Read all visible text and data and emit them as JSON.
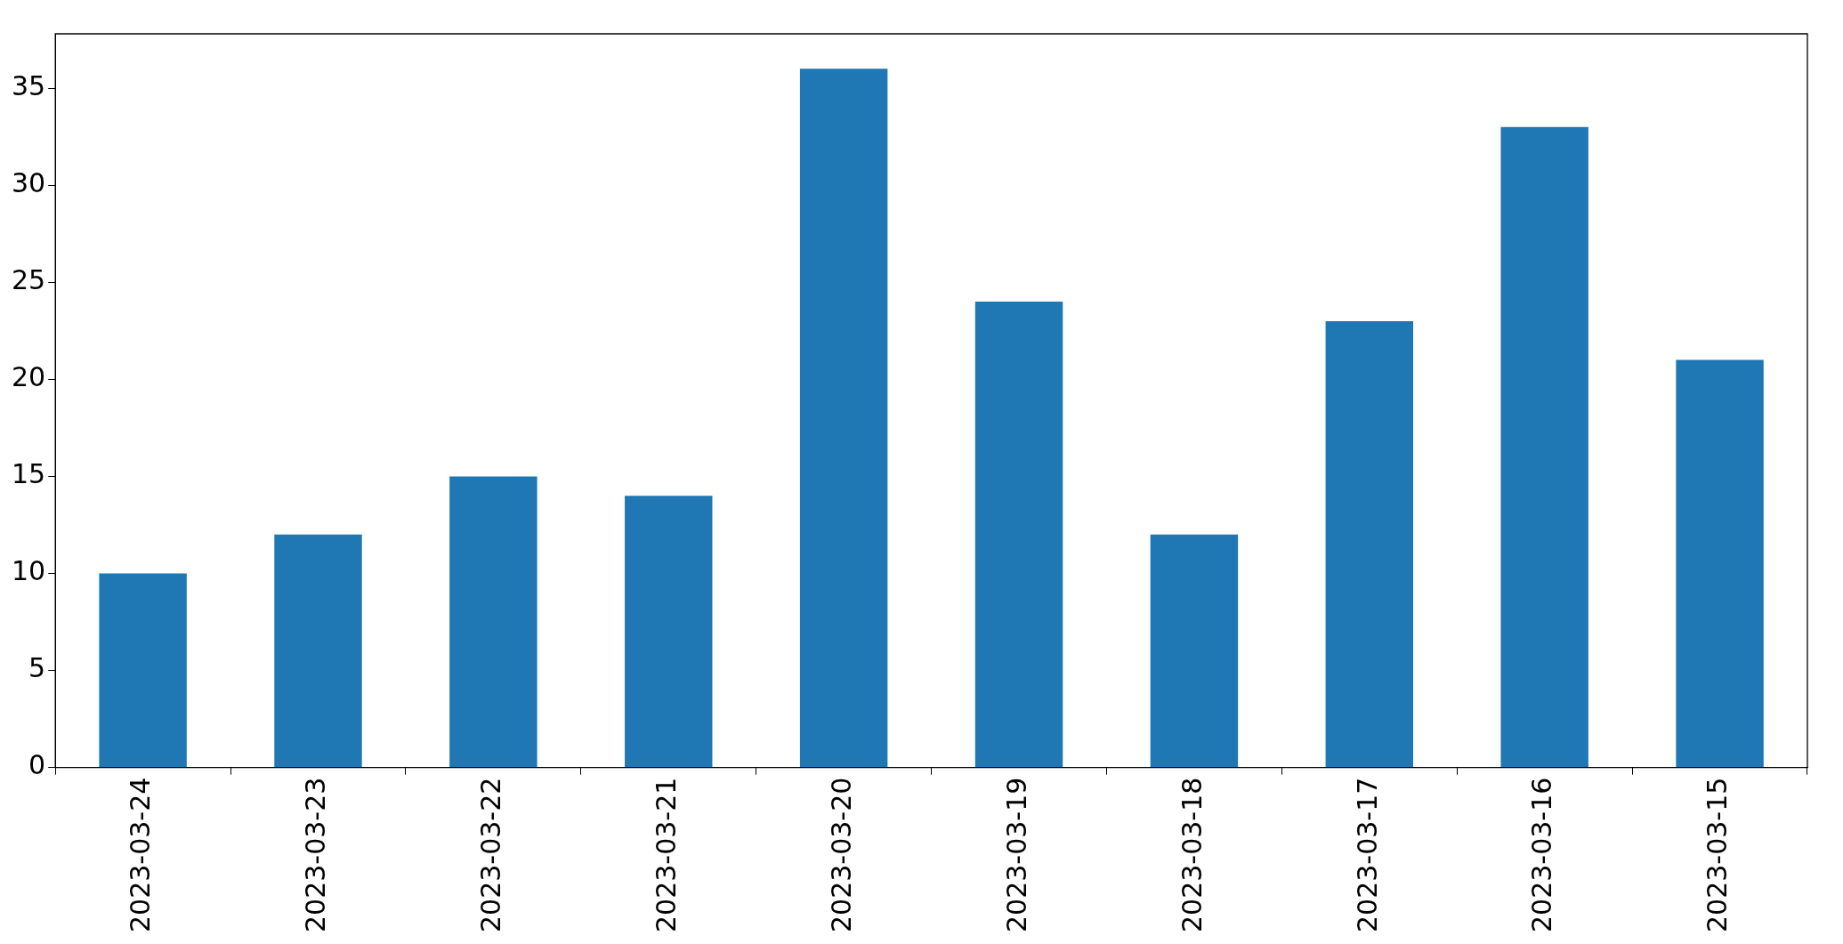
{
  "chart_data": {
    "type": "bar",
    "categories": [
      "2023-03-24",
      "2023-03-23",
      "2023-03-22",
      "2023-03-21",
      "2023-03-20",
      "2023-03-19",
      "2023-03-18",
      "2023-03-17",
      "2023-03-16",
      "2023-03-15"
    ],
    "values": [
      10,
      12,
      15,
      14,
      36,
      24,
      12,
      23,
      33,
      21
    ],
    "color": "#1f77b4",
    "ylim": [
      0,
      37.8
    ],
    "yticks": [
      0,
      5,
      10,
      15,
      20,
      25,
      30,
      35
    ],
    "grid": false,
    "legend": false
  }
}
